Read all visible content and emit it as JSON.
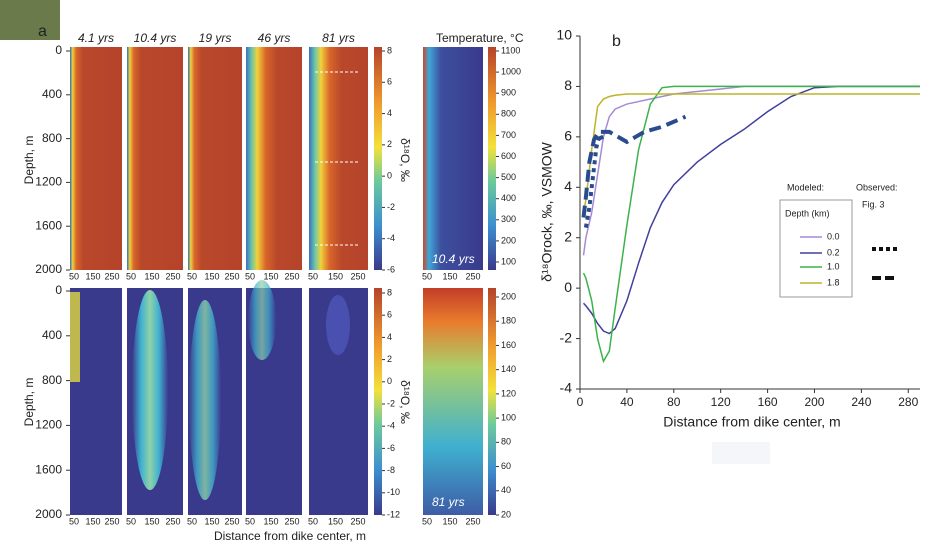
{
  "panel_a": {
    "label": "a",
    "times": [
      "4.1 yrs",
      "10.4 yrs",
      "19 yrs",
      "46 yrs",
      "81 yrs"
    ],
    "temperature_title": "Temperature, °C",
    "depth_label": "Depth, m",
    "depth_ticks": [
      0,
      400,
      800,
      1200,
      1600,
      2000
    ],
    "distance_ticks": [
      50,
      150,
      250
    ],
    "x_label": "Distance from dike center, m",
    "colorbar_label": "δ¹⁸O, ‰",
    "top_colorbar_ticks": [
      8,
      6,
      4,
      2,
      0,
      -2,
      -4,
      -6
    ],
    "bottom_colorbar_ticks": [
      8,
      6,
      4,
      2,
      0,
      -2,
      -4,
      -6,
      -8,
      -10,
      -12
    ],
    "top_temperature_ticks": [
      1100,
      1000,
      900,
      800,
      700,
      600,
      500,
      400,
      300,
      200,
      100
    ],
    "bottom_temperature_ticks": [
      200,
      180,
      160,
      140,
      120,
      100,
      80,
      60,
      40,
      20
    ],
    "top_temperature_time": "10.4 yrs",
    "bottom_temperature_time": "81 yrs"
  },
  "chart_data": {
    "type": "line",
    "label": "b",
    "x_label": "Distance from dike center, m",
    "y_label": "δ¹⁸Orock, ‰, VSMOW",
    "legend_modeled": "Modeled:",
    "legend_observed": "Observed:",
    "legend_observed_source": "Fig. 3",
    "legend_title": "Depth (km)",
    "x": [
      3,
      5,
      10,
      15,
      20,
      25,
      30,
      40,
      50,
      60,
      70,
      80,
      100,
      120,
      140,
      160,
      180,
      200,
      220,
      240,
      260,
      280,
      290
    ],
    "series": [
      {
        "name": "0.0",
        "color": "#a58bd6",
        "values": [
          1.3,
          2.0,
          3.0,
          4.5,
          6.0,
          6.8,
          7.1,
          7.3,
          7.4,
          7.5,
          7.6,
          7.7,
          7.8,
          7.9,
          8.0,
          8.0,
          8.0,
          8.0,
          8.0,
          8.0,
          8.0,
          8.0,
          8.0
        ]
      },
      {
        "name": "0.2",
        "color": "#40409e",
        "values": [
          -0.6,
          -0.7,
          -1.0,
          -1.4,
          -1.7,
          -1.8,
          -1.6,
          -0.5,
          1.0,
          2.4,
          3.4,
          4.1,
          5.0,
          5.7,
          6.3,
          7.0,
          7.6,
          7.95,
          8.0,
          8.0,
          8.0,
          8.0,
          8.0
        ]
      },
      {
        "name": "1.0",
        "color": "#3cb34a",
        "values": [
          0.6,
          0.4,
          -0.5,
          -2.0,
          -2.9,
          -2.5,
          -0.8,
          2.5,
          5.5,
          7.3,
          7.95,
          8.0,
          8.0,
          8.0,
          8.0,
          8.0,
          8.0,
          8.0,
          8.0,
          8.0,
          8.0,
          8.0,
          8.0
        ]
      },
      {
        "name": "1.8",
        "color": "#bdb42b",
        "values": [
          3.0,
          3.5,
          5.5,
          7.2,
          7.5,
          7.6,
          7.65,
          7.7,
          7.7,
          7.7,
          7.7,
          7.7,
          7.7,
          7.7,
          7.7,
          7.7,
          7.7,
          7.7,
          7.7,
          7.7,
          7.7,
          7.7,
          7.7
        ]
      }
    ],
    "observed": [
      {
        "style": "dotted",
        "color": "#2b4c8c",
        "x": [
          5,
          8,
          11,
          14,
          17,
          20
        ],
        "values": [
          2.4,
          3.2,
          4.4,
          5.6,
          6.1,
          5.8
        ]
      },
      {
        "style": "dashed",
        "color": "#2b4c8c",
        "x": [
          3,
          5,
          8,
          12,
          16,
          25,
          40,
          55,
          70,
          90
        ],
        "values": [
          2.8,
          3.6,
          5.0,
          5.9,
          6.2,
          6.2,
          5.8,
          6.2,
          6.4,
          6.8
        ]
      }
    ],
    "xlim": [
      0,
      290
    ],
    "ylim": [
      -4,
      10
    ],
    "xticks": [
      0,
      40,
      80,
      120,
      160,
      200,
      240,
      280
    ],
    "yticks": [
      -4,
      -2,
      0,
      2,
      4,
      6,
      8,
      10
    ]
  }
}
